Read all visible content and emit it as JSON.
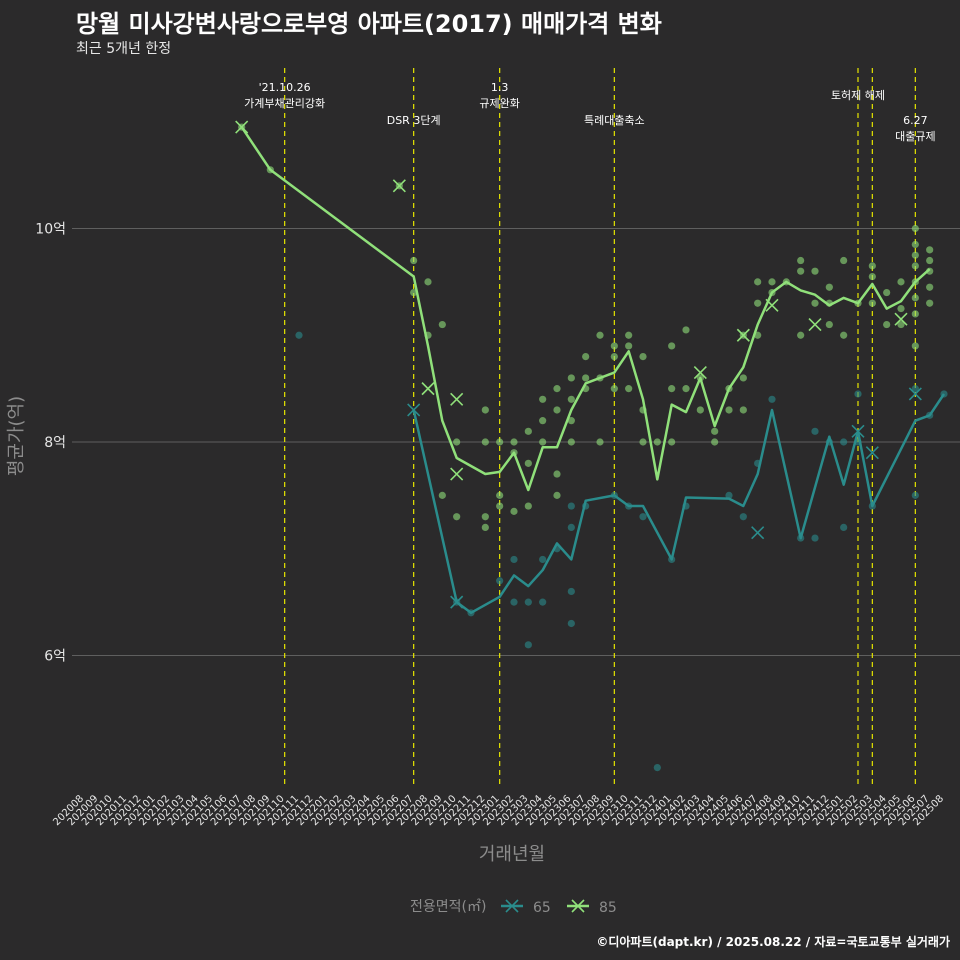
{
  "title": "망월 미사강변사랑으로부영 아파트(2017) 매매가격 변화",
  "subtitle": "최근 5개년 한정",
  "caption": "©디아파트(dapt.kr) / 2025.08.22 / 자료=국토교통부 실거래가",
  "colors": {
    "background": "#2b2a2b",
    "grid": "#5f5f5f",
    "event_line": "#e6e600",
    "s65": "#2a8c8c",
    "s85": "#90e07a"
  },
  "chart_data": {
    "type": "line",
    "xlabel": "거래년월",
    "ylabel": "평균가(억)",
    "ylim": [
      4.7,
      11.8
    ],
    "yticks": [
      {
        "v": 6,
        "label": "6억"
      },
      {
        "v": 8,
        "label": "8억"
      },
      {
        "v": 10,
        "label": "10억"
      }
    ],
    "legend": {
      "title": "전용면적(㎡)",
      "position": "bottom"
    },
    "x_labels": [
      "202008",
      "202009",
      "202010",
      "202011",
      "202012",
      "202101",
      "202102",
      "202103",
      "202104",
      "202105",
      "202106",
      "202107",
      "202108",
      "202109",
      "202110",
      "202111",
      "202112",
      "202201",
      "202202",
      "202203",
      "202204",
      "202205",
      "202206",
      "202207",
      "202208",
      "202209",
      "202210",
      "202211",
      "202212",
      "202301",
      "202302",
      "202303",
      "202304",
      "202305",
      "202306",
      "202307",
      "202308",
      "202309",
      "202310",
      "202311",
      "202312",
      "202401",
      "202402",
      "202403",
      "202404",
      "202405",
      "202406",
      "202407",
      "202408",
      "202409",
      "202410",
      "202411",
      "202412",
      "202501",
      "202502",
      "202503",
      "202504",
      "202505",
      "202506",
      "202507",
      "202508"
    ],
    "events": [
      {
        "x": "202110",
        "lines": [
          "'21.10.26",
          "가계부채관리강화"
        ],
        "row": 0
      },
      {
        "x": "202207",
        "lines": [
          "DSR 3단계"
        ],
        "row": 2
      },
      {
        "x": "202301",
        "lines": [
          "1.3",
          "규제완화"
        ],
        "row": 0
      },
      {
        "x": "202309",
        "lines": [
          "특례대출축소"
        ],
        "row": 2
      },
      {
        "x": "202502",
        "lines": [
          "토허제 해제"
        ],
        "row": 1
      },
      {
        "x": "202503",
        "lines": [],
        "row": 1
      },
      {
        "x": "202506",
        "lines": [
          "6.27",
          "대출규제"
        ],
        "row": 2
      }
    ],
    "series": [
      {
        "name": "65",
        "color": "#2a8c8c",
        "line": [
          [
            "202207",
            8.3
          ],
          [
            "202210",
            6.5
          ],
          [
            "202211",
            6.4
          ],
          [
            "202301",
            6.55
          ],
          [
            "202302",
            6.75
          ],
          [
            "202303",
            6.65
          ],
          [
            "202304",
            6.8
          ],
          [
            "202305",
            7.05
          ],
          [
            "202306",
            6.9
          ],
          [
            "202307",
            7.45
          ],
          [
            "202309",
            7.5
          ],
          [
            "202310",
            7.4
          ],
          [
            "202311",
            7.4
          ],
          [
            "202401",
            6.9
          ],
          [
            "202402",
            7.48
          ],
          [
            "202405",
            7.47
          ],
          [
            "202406",
            7.4
          ],
          [
            "202407",
            7.7
          ],
          [
            "202408",
            8.3
          ],
          [
            "202410",
            7.1
          ],
          [
            "202412",
            8.05
          ],
          [
            "202501",
            7.6
          ],
          [
            "202502",
            8.1
          ],
          [
            "202503",
            7.4
          ],
          [
            "202506",
            8.2
          ],
          [
            "202507",
            8.25
          ],
          [
            "202508",
            8.45
          ]
        ],
        "points": [
          [
            "202111",
            9.0
          ],
          [
            "202210",
            6.5
          ],
          [
            "202211",
            6.4
          ],
          [
            "202301",
            6.7
          ],
          [
            "202302",
            6.9
          ],
          [
            "202302",
            6.5
          ],
          [
            "202303",
            6.1
          ],
          [
            "202303",
            6.5
          ],
          [
            "202304",
            6.5
          ],
          [
            "202304",
            6.9
          ],
          [
            "202305",
            7.0
          ],
          [
            "202306",
            7.4
          ],
          [
            "202306",
            7.2
          ],
          [
            "202306",
            6.6
          ],
          [
            "202306",
            6.3
          ],
          [
            "202307",
            7.4
          ],
          [
            "202309",
            7.5
          ],
          [
            "202310",
            7.4
          ],
          [
            "202311",
            7.3
          ],
          [
            "202312",
            4.95
          ],
          [
            "202401",
            6.9
          ],
          [
            "202402",
            7.4
          ],
          [
            "202405",
            7.5
          ],
          [
            "202406",
            7.3
          ],
          [
            "202407",
            7.8
          ],
          [
            "202408",
            8.4
          ],
          [
            "202410",
            7.1
          ],
          [
            "202411",
            7.1
          ],
          [
            "202411",
            8.1
          ],
          [
            "202412",
            8.0
          ],
          [
            "202501",
            7.2
          ],
          [
            "202501",
            8.0
          ],
          [
            "202502",
            8.0
          ],
          [
            "202502",
            8.45
          ],
          [
            "202503",
            7.4
          ],
          [
            "202506",
            7.5
          ],
          [
            "202506",
            8.5
          ],
          [
            "202507",
            8.25
          ],
          [
            "202508",
            8.45
          ]
        ],
        "markers": [
          [
            "202207",
            8.3
          ],
          [
            "202210",
            6.5
          ],
          [
            "202407",
            7.15
          ],
          [
            "202502",
            8.1
          ],
          [
            "202503",
            7.9
          ],
          [
            "202506",
            8.45
          ]
        ]
      },
      {
        "name": "85",
        "color": "#90e07a",
        "line": [
          [
            "202107",
            10.95
          ],
          [
            "202109",
            10.55
          ],
          [
            "202207",
            9.55
          ],
          [
            "202208",
            8.9
          ],
          [
            "202209",
            8.2
          ],
          [
            "202210",
            7.85
          ],
          [
            "202212",
            7.7
          ],
          [
            "202301",
            7.72
          ],
          [
            "202302",
            7.9
          ],
          [
            "202303",
            7.55
          ],
          [
            "202304",
            7.95
          ],
          [
            "202305",
            7.95
          ],
          [
            "202306",
            8.3
          ],
          [
            "202307",
            8.55
          ],
          [
            "202309",
            8.65
          ],
          [
            "202310",
            8.85
          ],
          [
            "202311",
            8.4
          ],
          [
            "202312",
            7.65
          ],
          [
            "202401",
            8.35
          ],
          [
            "202402",
            8.28
          ],
          [
            "202403",
            8.6
          ],
          [
            "202404",
            8.15
          ],
          [
            "202405",
            8.5
          ],
          [
            "202406",
            8.7
          ],
          [
            "202407",
            9.1
          ],
          [
            "202408",
            9.4
          ],
          [
            "202409",
            9.5
          ],
          [
            "202410",
            9.42
          ],
          [
            "202411",
            9.38
          ],
          [
            "202412",
            9.28
          ],
          [
            "202501",
            9.35
          ],
          [
            "202502",
            9.3
          ],
          [
            "202503",
            9.48
          ],
          [
            "202504",
            9.25
          ],
          [
            "202505",
            9.32
          ],
          [
            "202506",
            9.5
          ],
          [
            "202507",
            9.62
          ]
        ],
        "points": [
          [
            "202107",
            10.95
          ],
          [
            "202109",
            10.55
          ],
          [
            "202206",
            10.4
          ],
          [
            "202207",
            9.7
          ],
          [
            "202207",
            9.4
          ],
          [
            "202208",
            9.5
          ],
          [
            "202208",
            9.0
          ],
          [
            "202209",
            9.1
          ],
          [
            "202209",
            7.5
          ],
          [
            "202210",
            8.0
          ],
          [
            "202210",
            7.3
          ],
          [
            "202212",
            8.3
          ],
          [
            "202212",
            8.0
          ],
          [
            "202212",
            7.3
          ],
          [
            "202212",
            7.2
          ],
          [
            "202301",
            8.0
          ],
          [
            "202301",
            7.5
          ],
          [
            "202301",
            7.4
          ],
          [
            "202302",
            8.0
          ],
          [
            "202302",
            7.9
          ],
          [
            "202302",
            7.35
          ],
          [
            "202303",
            8.1
          ],
          [
            "202303",
            7.8
          ],
          [
            "202303",
            7.4
          ],
          [
            "202304",
            8.4
          ],
          [
            "202304",
            8.2
          ],
          [
            "202304",
            8.0
          ],
          [
            "202305",
            8.5
          ],
          [
            "202305",
            8.3
          ],
          [
            "202305",
            7.7
          ],
          [
            "202305",
            7.5
          ],
          [
            "202306",
            8.6
          ],
          [
            "202306",
            8.4
          ],
          [
            "202306",
            8.2
          ],
          [
            "202306",
            8.0
          ],
          [
            "202307",
            8.8
          ],
          [
            "202307",
            8.6
          ],
          [
            "202307",
            8.5
          ],
          [
            "202308",
            9.0
          ],
          [
            "202308",
            8.6
          ],
          [
            "202308",
            8.0
          ],
          [
            "202309",
            8.9
          ],
          [
            "202309",
            8.8
          ],
          [
            "202309",
            8.5
          ],
          [
            "202310",
            9.0
          ],
          [
            "202310",
            8.9
          ],
          [
            "202310",
            8.5
          ],
          [
            "202311",
            8.8
          ],
          [
            "202311",
            8.3
          ],
          [
            "202311",
            8.0
          ],
          [
            "202312",
            8.0
          ],
          [
            "202401",
            8.9
          ],
          [
            "202401",
            8.5
          ],
          [
            "202401",
            8.0
          ],
          [
            "202402",
            9.05
          ],
          [
            "202402",
            8.5
          ],
          [
            "202403",
            8.6
          ],
          [
            "202403",
            8.3
          ],
          [
            "202404",
            8.1
          ],
          [
            "202404",
            8.0
          ],
          [
            "202405",
            8.5
          ],
          [
            "202405",
            8.3
          ],
          [
            "202406",
            9.0
          ],
          [
            "202406",
            8.6
          ],
          [
            "202406",
            8.3
          ],
          [
            "202407",
            9.5
          ],
          [
            "202407",
            9.3
          ],
          [
            "202407",
            9.0
          ],
          [
            "202408",
            9.5
          ],
          [
            "202408",
            9.4
          ],
          [
            "202409",
            9.5
          ],
          [
            "202410",
            9.7
          ],
          [
            "202410",
            9.6
          ],
          [
            "202410",
            9.0
          ],
          [
            "202411",
            9.6
          ],
          [
            "202411",
            9.3
          ],
          [
            "202412",
            9.45
          ],
          [
            "202412",
            9.3
          ],
          [
            "202412",
            9.1
          ],
          [
            "202501",
            9.7
          ],
          [
            "202501",
            9.0
          ],
          [
            "202502",
            9.3
          ],
          [
            "202503",
            9.65
          ],
          [
            "202503",
            9.55
          ],
          [
            "202503",
            9.3
          ],
          [
            "202504",
            9.1
          ],
          [
            "202504",
            9.4
          ],
          [
            "202505",
            9.5
          ],
          [
            "202505",
            9.25
          ],
          [
            "202505",
            9.1
          ],
          [
            "202506",
            10.0
          ],
          [
            "202506",
            9.85
          ],
          [
            "202506",
            9.75
          ],
          [
            "202506",
            9.65
          ],
          [
            "202506",
            9.5
          ],
          [
            "202506",
            9.35
          ],
          [
            "202506",
            9.2
          ],
          [
            "202506",
            8.9
          ],
          [
            "202507",
            9.8
          ],
          [
            "202507",
            9.7
          ],
          [
            "202507",
            9.6
          ],
          [
            "202507",
            9.45
          ],
          [
            "202507",
            9.3
          ]
        ],
        "markers": [
          [
            "202107",
            10.95
          ],
          [
            "202206",
            10.4
          ],
          [
            "202208",
            8.5
          ],
          [
            "202210",
            8.4
          ],
          [
            "202210",
            7.7
          ],
          [
            "202403",
            8.65
          ],
          [
            "202406",
            9.0
          ],
          [
            "202408",
            9.28
          ],
          [
            "202411",
            9.1
          ],
          [
            "202505",
            9.15
          ]
        ]
      }
    ]
  }
}
